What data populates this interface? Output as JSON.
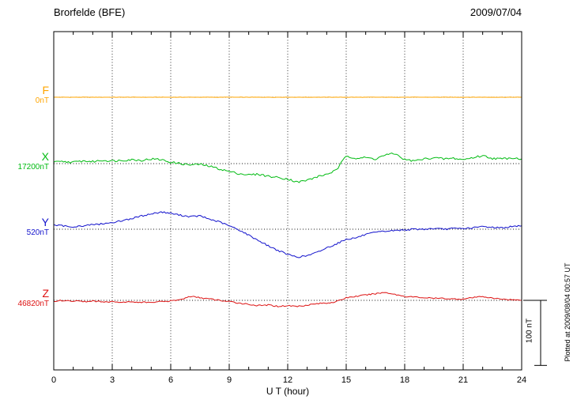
{
  "header": {
    "title": "Brorfelde (BFE)",
    "date": "2009/07/04"
  },
  "footer": {
    "plotted_at": "Plotted at 2009/08/04 00:57 UT"
  },
  "chart_data": {
    "type": "line",
    "title": "Brorfelde (BFE)",
    "date": "2009/07/04",
    "xlabel": "U T (hour)",
    "x_range": [
      0,
      24
    ],
    "x_ticks": [
      0,
      3,
      6,
      9,
      12,
      15,
      18,
      21,
      24
    ],
    "grid": "dotted vertical lines every 3 hours; dotted horizontal baseline per component",
    "legend_position": "left-margin component labels",
    "scale_bar": {
      "label": "100 nT",
      "nT": 100
    },
    "units": "nT offset from each component baseline",
    "x_hours": [
      0,
      0.5,
      1,
      1.5,
      2,
      2.5,
      3,
      3.5,
      4,
      4.5,
      5,
      5.5,
      6,
      6.5,
      7,
      7.5,
      8,
      8.5,
      9,
      9.5,
      10,
      10.5,
      11,
      11.5,
      12,
      12.5,
      13,
      13.5,
      14,
      14.5,
      15,
      15.5,
      16,
      16.5,
      17,
      17.5,
      18,
      18.5,
      19,
      19.5,
      20,
      20.5,
      21,
      21.5,
      22,
      22.5,
      23,
      23.5,
      24
    ],
    "series": [
      {
        "component": "F",
        "baseline_label": "0nT",
        "color": "#FFA500",
        "values_nT": [
          0,
          0,
          0,
          0,
          0,
          0,
          0,
          0,
          0,
          0,
          0,
          0,
          0,
          0,
          0,
          0,
          0,
          0,
          0,
          0,
          0,
          0,
          0,
          0,
          0,
          0,
          0,
          0,
          0,
          0,
          0,
          0,
          0,
          0,
          0,
          0,
          0,
          0,
          0,
          0,
          0,
          0,
          0,
          0,
          0,
          0,
          0,
          0,
          0
        ]
      },
      {
        "component": "X",
        "baseline_label": "17200nT",
        "color": "#00BB11",
        "values_nT": [
          2,
          3,
          2,
          4,
          3,
          5,
          4,
          5,
          6,
          5,
          7,
          6,
          2,
          0,
          -2,
          -1,
          -4,
          -8,
          -12,
          -15,
          -17,
          -16,
          -19,
          -21,
          -23,
          -28,
          -25,
          -20,
          -16,
          -10,
          12,
          8,
          9,
          7,
          13,
          15,
          6,
          4,
          7,
          9,
          7,
          8,
          6,
          9,
          12,
          8,
          7,
          9,
          7
        ]
      },
      {
        "component": "Y",
        "baseline_label": "520nT",
        "color": "#1111CC",
        "values_nT": [
          6,
          5,
          4,
          5,
          7,
          8,
          10,
          13,
          16,
          20,
          23,
          26,
          24,
          21,
          19,
          20,
          15,
          11,
          5,
          -1,
          -9,
          -17,
          -25,
          -32,
          -38,
          -42,
          -40,
          -35,
          -28,
          -22,
          -15,
          -13,
          -8,
          -5,
          -3,
          -2,
          -1,
          0,
          0,
          1,
          0,
          1,
          1,
          2,
          4,
          3,
          2,
          4,
          5
        ]
      },
      {
        "component": "Z",
        "baseline_label": "46820nT",
        "color": "#DD1111",
        "values_nT": [
          -1,
          0,
          -1,
          -2,
          -1,
          -2,
          -2,
          -3,
          -2,
          -3,
          -3,
          -2,
          -1,
          1,
          6,
          4,
          2,
          0,
          -2,
          -4,
          -6,
          -8,
          -7,
          -9,
          -8,
          -9,
          -7,
          -5,
          -4,
          -2,
          4,
          6,
          8,
          10,
          12,
          9,
          6,
          5,
          4,
          3,
          3,
          2,
          2,
          4,
          6,
          3,
          2,
          1,
          0
        ]
      }
    ]
  }
}
